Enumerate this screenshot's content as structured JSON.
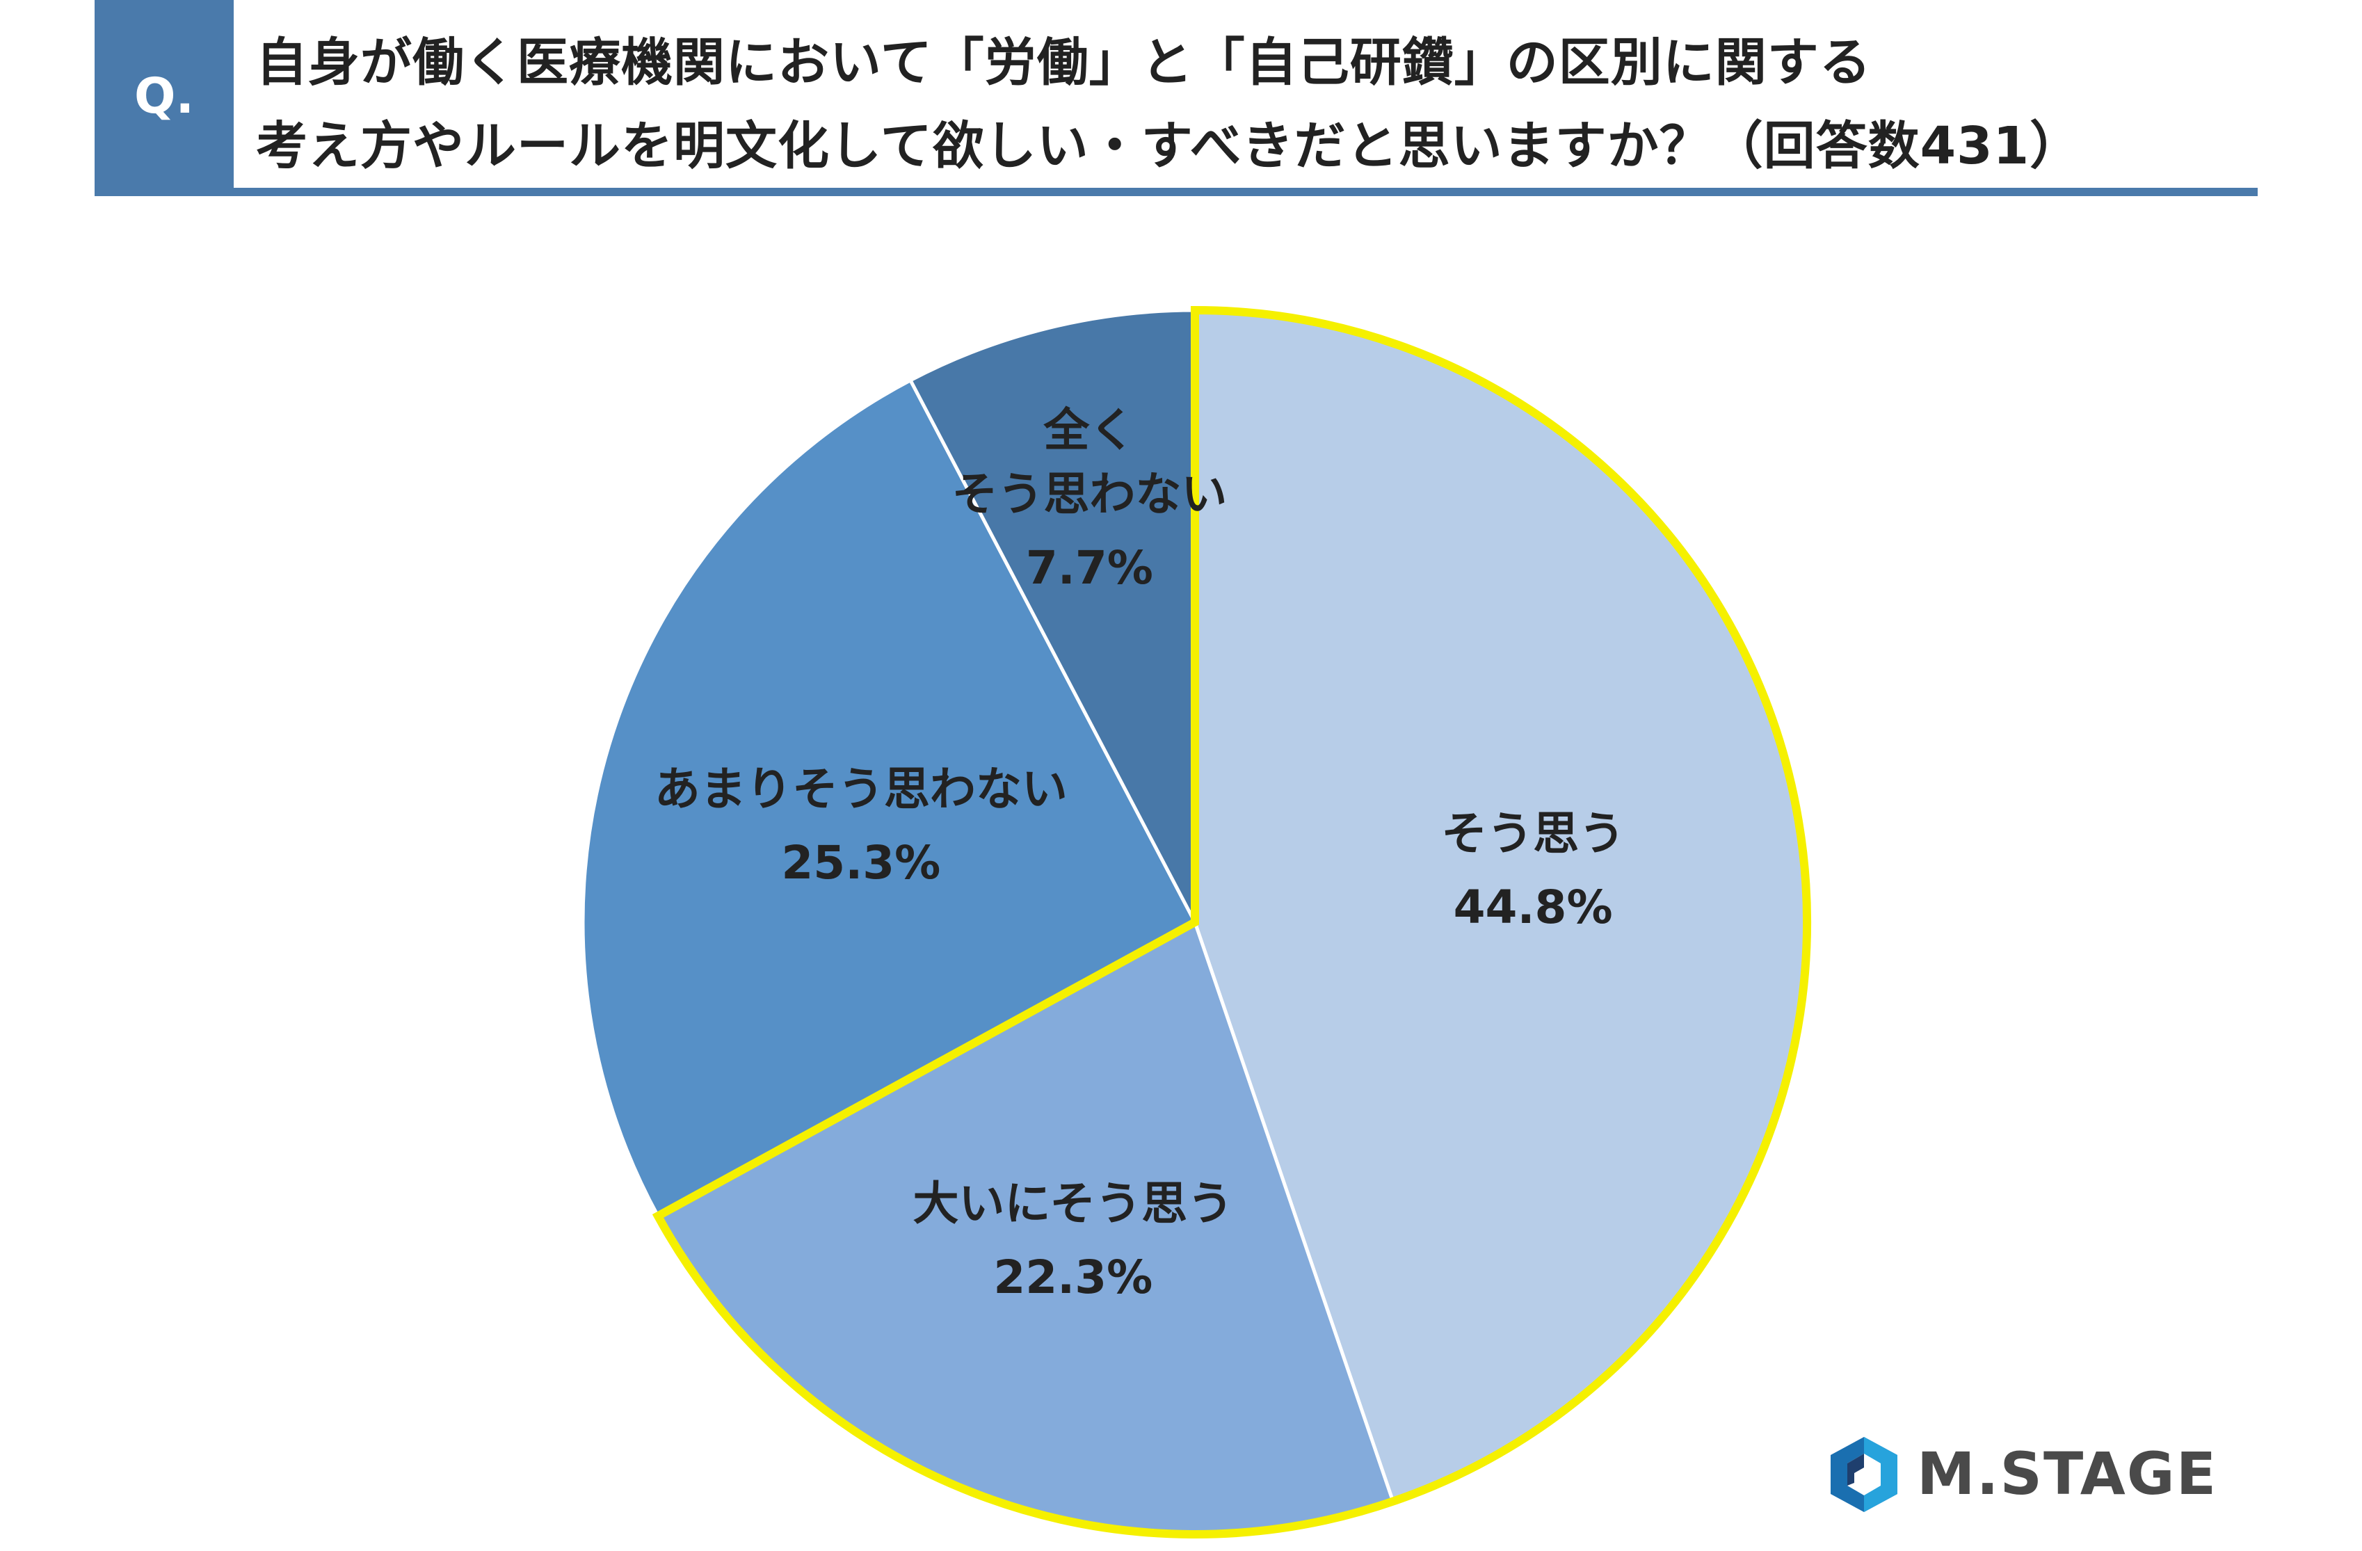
{
  "header": {
    "badge": "Q.",
    "title_line1": "自身が働く医療機関において「労働」と「自己研鑽」の区別に関する",
    "title_line2": "考え方やルールを明文化して欲しい・すべきだと思いますか？（回答数431）"
  },
  "colors": {
    "header_blue": "#4a7aab",
    "highlight_border": "#f5f000",
    "divider": "#ffffff"
  },
  "chart_data": {
    "type": "pie",
    "start_angle_deg": 0,
    "direction": "clockwise",
    "slices": [
      {
        "label": [
          "そう思う"
        ],
        "pct_label": "44.8%",
        "value": 44.8,
        "color": "#b7cde8",
        "highlight": true
      },
      {
        "label": [
          "大いにそう思う"
        ],
        "pct_label": "22.3%",
        "value": 22.3,
        "color": "#84abdb",
        "highlight": true
      },
      {
        "label": [
          "あまりそう思わない"
        ],
        "pct_label": "25.3%",
        "value": 25.3,
        "color": "#5690c7",
        "highlight": false
      },
      {
        "label": [
          "全く",
          "そう思わない"
        ],
        "pct_label": "7.7%",
        "value": 7.7,
        "color": "#4878a8",
        "highlight": false
      }
    ]
  },
  "logo": {
    "text": "M.STAGE",
    "colors": [
      "#1a6fb0",
      "#27a3dc",
      "#1f3f6e"
    ]
  }
}
